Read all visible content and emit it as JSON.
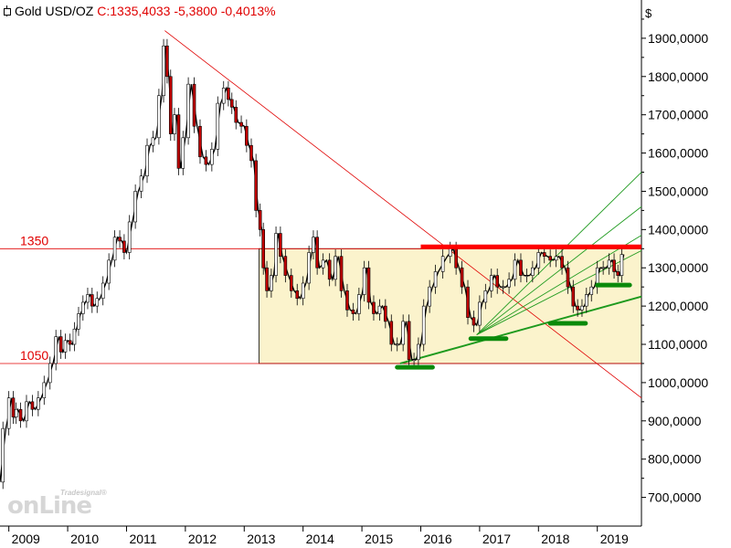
{
  "header": {
    "symbol": "Gold USD/OZ",
    "quote": "C:1335,4033 -5,3800 -0,4013%"
  },
  "watermark": {
    "small": "Tradesignal®",
    "big": "onLine"
  },
  "colors": {
    "background": "#ffffff",
    "range_box_fill": "#fbf3cc",
    "price_line": "#000000",
    "candle_down": "#c00000",
    "horizontal_level": "#e00000",
    "resistance": "#ff0000",
    "support": "#0a8a0a",
    "fan_lines": "#1e9a1e",
    "axis_text": "#000000",
    "level_label": "#e00000"
  },
  "chart_data": {
    "type": "line",
    "y_unit_label": "$",
    "ylim": [
      625,
      2000
    ],
    "y_ticks": [
      700,
      800,
      900,
      1000,
      1100,
      1200,
      1300,
      1400,
      1500,
      1600,
      1700,
      1800,
      1900
    ],
    "y_tick_labels": [
      "700,0000",
      "800,0000",
      "900,0000",
      "1000,0000",
      "1100,0000",
      "1200,0000",
      "1300,0000",
      "1400,0000",
      "1500,0000",
      "1600,0000",
      "1700,0000",
      "1800,0000",
      "1900,0000"
    ],
    "xlim": [
      2008.85,
      2019.75
    ],
    "x_ticks": [
      2009,
      2010,
      2011,
      2012,
      2013,
      2014,
      2015,
      2016,
      2017,
      2018,
      2019
    ],
    "x_tick_labels": [
      "2009",
      "2010",
      "2011",
      "2012",
      "2013",
      "2014",
      "2015",
      "2016",
      "2017",
      "2018",
      "2019"
    ],
    "series": [
      {
        "x": [
          2008.85,
          2008.95,
          2009.05,
          2009.1,
          2009.15,
          2009.25,
          2009.35,
          2009.45,
          2009.55,
          2009.65,
          2009.75,
          2009.85,
          2009.92,
          2010.0,
          2010.08,
          2010.15,
          2010.22,
          2010.3,
          2010.38,
          2010.45,
          2010.55,
          2010.65,
          2010.75,
          2010.85,
          2010.92,
          2011.0,
          2011.1,
          2011.2,
          2011.3,
          2011.4,
          2011.5,
          2011.6,
          2011.66,
          2011.72,
          2011.78,
          2011.85,
          2011.92,
          2012.0,
          2012.1,
          2012.2,
          2012.3,
          2012.4,
          2012.5,
          2012.6,
          2012.7,
          2012.76,
          2012.82,
          2012.9,
          2013.0,
          2013.08,
          2013.16,
          2013.24,
          2013.3,
          2013.35,
          2013.42,
          2013.5,
          2013.58,
          2013.65,
          2013.75,
          2013.85,
          2013.95,
          2014.05,
          2014.15,
          2014.2,
          2014.28,
          2014.4,
          2014.5,
          2014.6,
          2014.7,
          2014.8,
          2014.9,
          2015.0,
          2015.08,
          2015.15,
          2015.25,
          2015.35,
          2015.45,
          2015.55,
          2015.65,
          2015.75,
          2015.85,
          2015.92,
          2016.0,
          2016.1,
          2016.2,
          2016.3,
          2016.45,
          2016.55,
          2016.65,
          2016.75,
          2016.85,
          2016.95,
          2017.05,
          2017.15,
          2017.25,
          2017.35,
          2017.45,
          2017.55,
          2017.65,
          2017.75,
          2017.85,
          2017.95,
          2018.05,
          2018.15,
          2018.25,
          2018.35,
          2018.45,
          2018.55,
          2018.63,
          2018.7,
          2018.78,
          2018.85,
          2018.95,
          2019.05,
          2019.15,
          2019.25,
          2019.32,
          2019.38,
          2019.45
        ],
        "y": [
          740,
          880,
          960,
          910,
          930,
          900,
          950,
          930,
          960,
          1000,
          1050,
          1120,
          1080,
          1110,
          1100,
          1140,
          1180,
          1210,
          1230,
          1200,
          1220,
          1260,
          1320,
          1380,
          1370,
          1340,
          1420,
          1500,
          1540,
          1620,
          1640,
          1750,
          1880,
          1800,
          1650,
          1700,
          1560,
          1640,
          1780,
          1670,
          1590,
          1570,
          1610,
          1730,
          1770,
          1740,
          1720,
          1680,
          1670,
          1620,
          1580,
          1450,
          1400,
          1300,
          1240,
          1280,
          1390,
          1330,
          1280,
          1240,
          1220,
          1260,
          1340,
          1380,
          1300,
          1320,
          1270,
          1330,
          1240,
          1190,
          1180,
          1230,
          1300,
          1210,
          1180,
          1200,
          1160,
          1100,
          1100,
          1160,
          1060,
          1060,
          1100,
          1200,
          1250,
          1290,
          1330,
          1350,
          1300,
          1250,
          1170,
          1150,
          1210,
          1240,
          1280,
          1250,
          1250,
          1270,
          1320,
          1280,
          1280,
          1300,
          1340,
          1330,
          1320,
          1330,
          1300,
          1250,
          1200,
          1190,
          1200,
          1230,
          1250,
          1300,
          1300,
          1320,
          1290,
          1280,
          1335
        ]
      }
    ],
    "horizontal_levels": [
      {
        "value": 1350,
        "label": "1350"
      },
      {
        "value": 1050,
        "label": "1050"
      }
    ],
    "range_box": {
      "x_start": 2013.25,
      "x_end": 2019.75,
      "y_low": 1050,
      "y_high": 1350
    },
    "downtrend_line": {
      "x1": 2011.65,
      "y1": 1920,
      "x2": 2019.75,
      "y2": 960
    },
    "resistance_line": {
      "x1": 2016.0,
      "x2": 2019.75,
      "y": 1355
    },
    "support_marks": [
      {
        "x1": 2015.6,
        "x2": 2016.2,
        "y": 1040
      },
      {
        "x1": 2016.85,
        "x2": 2017.45,
        "y": 1115
      },
      {
        "x1": 2018.2,
        "x2": 2018.8,
        "y": 1155
      },
      {
        "x1": 2019.0,
        "x2": 2019.55,
        "y": 1255
      }
    ],
    "trend_lines": [
      {
        "x1": 2015.65,
        "y1": 1050,
        "x2": 2019.75,
        "y2": 1225
      },
      {
        "x1": 2016.95,
        "y1": 1125,
        "x2": 2019.75,
        "y2": 1550
      },
      {
        "x1": 2016.95,
        "y1": 1125,
        "x2": 2019.75,
        "y2": 1460
      },
      {
        "x1": 2016.95,
        "y1": 1125,
        "x2": 2019.75,
        "y2": 1385
      },
      {
        "x1": 2016.95,
        "y1": 1125,
        "x2": 2019.75,
        "y2": 1345
      }
    ]
  }
}
